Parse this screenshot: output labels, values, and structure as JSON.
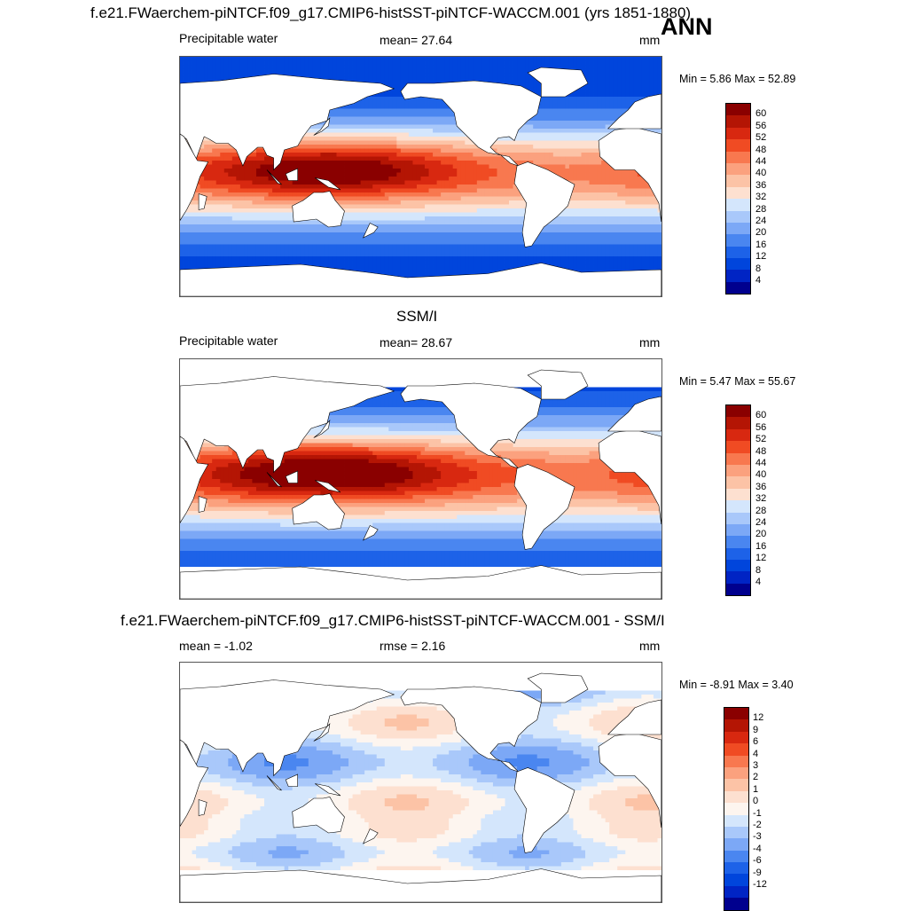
{
  "header": {
    "title": "f.e21.FWaerchem-piNTCF.f09_g17.CMIP6-histSST-piNTCF-WACCM.001 (yrs 1851-1880)",
    "season": "ANN"
  },
  "colors": {
    "abs_scale": [
      "#00008e",
      "#0024c4",
      "#0045dc",
      "#1d62e8",
      "#4a86f0",
      "#7ca8f6",
      "#a9c8fa",
      "#d4e6fc",
      "#fde0d0",
      "#fcc3a6",
      "#fba17e",
      "#f8784f",
      "#f04b23",
      "#d82810",
      "#b41504",
      "#8a0000"
    ],
    "diff_scale": [
      "#00008e",
      "#0024c4",
      "#0045dc",
      "#1d62e8",
      "#4a86f0",
      "#7ca8f6",
      "#a9c8fa",
      "#d4e6fc",
      "#fdf5ef",
      "#fde0d0",
      "#fcc3a6",
      "#fba17e",
      "#f8784f",
      "#f04b23",
      "#d82810",
      "#b41504",
      "#8a0000"
    ],
    "land": "#ffffff",
    "coast": "#000000"
  },
  "panels": [
    {
      "subtitle": "",
      "left_label": "Precipitable water",
      "center_label": "mean=  27.64",
      "units": "mm",
      "minmax": "Min =   5.86 Max =  52.89",
      "levels": [
        "60",
        "56",
        "52",
        "48",
        "44",
        "40",
        "36",
        "32",
        "28",
        "24",
        "20",
        "16",
        "12",
        "8",
        "4"
      ]
    },
    {
      "subtitle": "SSM/I",
      "left_label": "Precipitable water",
      "center_label": "mean=  28.67",
      "units": "mm",
      "minmax": "Min =   5.47 Max =  55.67",
      "levels": [
        "60",
        "56",
        "52",
        "48",
        "44",
        "40",
        "36",
        "32",
        "28",
        "24",
        "20",
        "16",
        "12",
        "8",
        "4"
      ]
    },
    {
      "subtitle": "f.e21.FWaerchem-piNTCF.f09_g17.CMIP6-histSST-piNTCF-WACCM.001 - SSM/I",
      "left_label": "mean =  -1.02",
      "center_label": "rmse =   2.16",
      "units": "mm",
      "minmax": "Min =  -8.91 Max =   3.40",
      "levels": [
        "12",
        "9",
        "6",
        "4",
        "3",
        "2",
        "1",
        "0",
        "-1",
        "-2",
        "-3",
        "-4",
        "-6",
        "-9",
        "-12"
      ]
    }
  ]
}
